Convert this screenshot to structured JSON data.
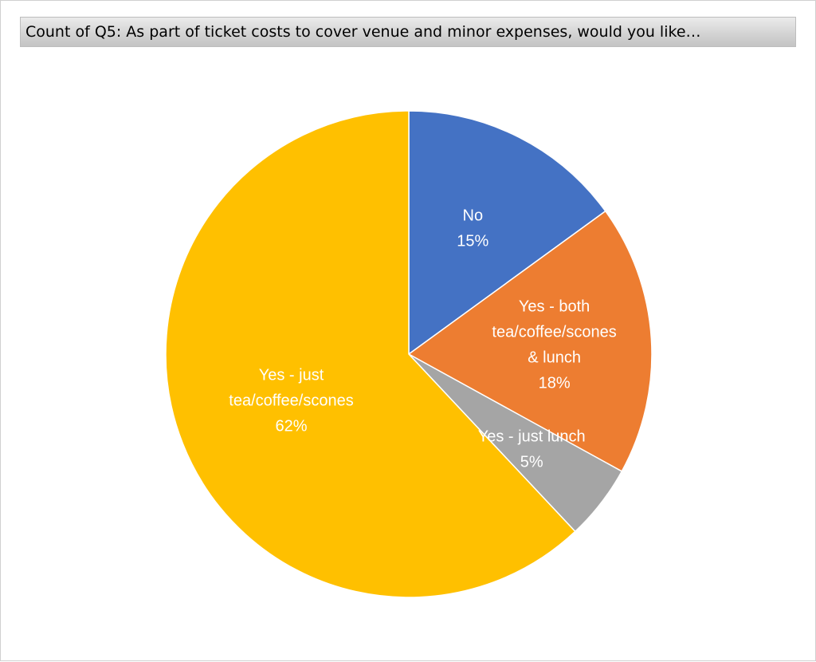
{
  "chart_data": {
    "type": "pie",
    "title": "Count of Q5: As part of ticket costs to cover venue and minor expenses, would you like…",
    "slices": [
      {
        "label": [
          "No"
        ],
        "percent_label": "15%",
        "value": 15,
        "color": "#4472C4"
      },
      {
        "label": [
          "Yes - both",
          "tea/coffee/scones",
          "& lunch"
        ],
        "percent_label": "18%",
        "value": 18,
        "color": "#ED7D31"
      },
      {
        "label": [
          "Yes - just lunch"
        ],
        "percent_label": "5%",
        "value": 5,
        "color": "#A5A5A5"
      },
      {
        "label": [
          "Yes - just",
          "tea/coffee/scones"
        ],
        "percent_label": "62%",
        "value": 62,
        "color": "#FFC000"
      }
    ],
    "start_angle": "12 o'clock",
    "direction": "clockwise",
    "legend": "none",
    "data_labels": "inside"
  }
}
